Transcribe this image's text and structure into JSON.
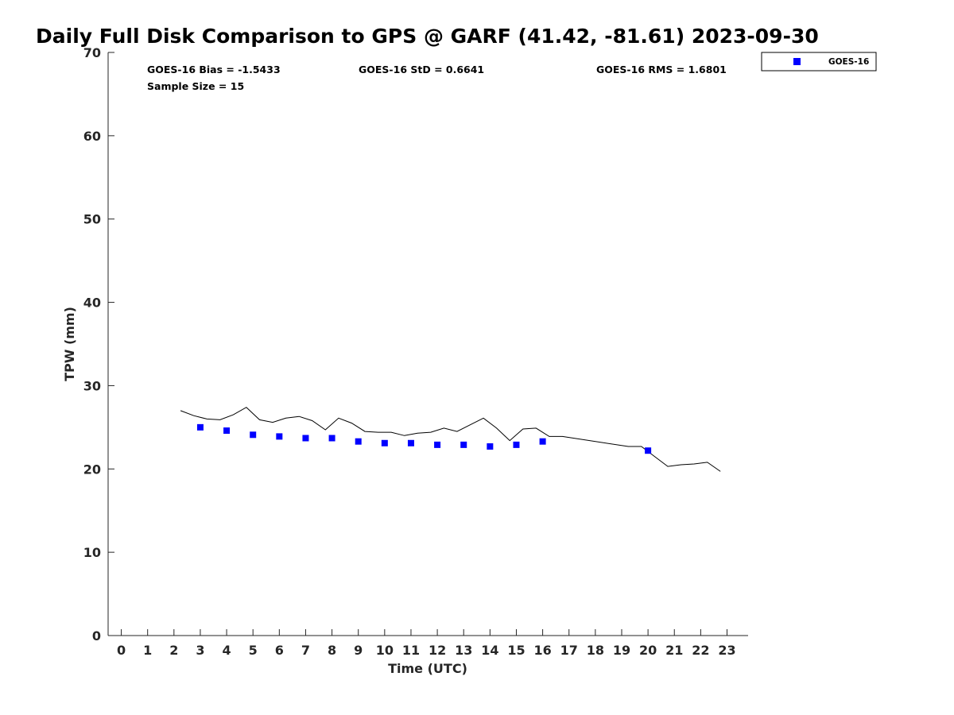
{
  "chart_data": {
    "type": "scatter",
    "title": "Daily Full Disk Comparison to GPS @ GARF (41.42, -81.61) 2023-09-30",
    "xlabel": "Time (UTC)",
    "ylabel": "TPW (mm)",
    "xlim": [
      -0.5,
      23.8
    ],
    "ylim": [
      0,
      70
    ],
    "x_ticks": [
      0,
      1,
      2,
      3,
      4,
      5,
      6,
      7,
      8,
      9,
      10,
      11,
      12,
      13,
      14,
      15,
      16,
      17,
      18,
      19,
      20,
      21,
      22,
      23
    ],
    "y_ticks": [
      0,
      10,
      20,
      30,
      40,
      50,
      60,
      70
    ],
    "grid": false,
    "legend_position": "top-right",
    "stats": {
      "bias": "GOES-16 Bias = -1.5433",
      "std": "GOES-16 StD = 0.6641",
      "rms": "GOES-16 RMS = 1.6801",
      "sample": "Sample Size = 15"
    },
    "series": [
      {
        "name": "GOES-16",
        "kind": "markers",
        "marker": "square",
        "color": "#0000ff",
        "x": [
          3,
          4,
          5,
          6,
          7,
          8,
          9,
          10,
          11,
          12,
          13,
          14,
          15,
          16,
          20
        ],
        "y": [
          25.0,
          24.6,
          24.1,
          23.9,
          23.7,
          23.7,
          23.3,
          23.1,
          23.1,
          22.9,
          22.9,
          22.7,
          22.9,
          23.3,
          22.2
        ]
      },
      {
        "kind": "line",
        "color": "#000000",
        "x": [
          2.25,
          2.75,
          3.25,
          3.75,
          4.25,
          4.75,
          5.25,
          5.75,
          6.25,
          6.75,
          7.25,
          7.75,
          8.25,
          8.75,
          9.25,
          9.75,
          10.25,
          10.75,
          11.25,
          11.75,
          12.25,
          12.75,
          13.25,
          13.75,
          14.25,
          14.75,
          15.25,
          15.75,
          16.25,
          16.75,
          19.25,
          19.75,
          20.25,
          20.75,
          21.25,
          21.75,
          22.25,
          22.75
        ],
        "y": [
          27.0,
          26.4,
          26.0,
          25.9,
          26.5,
          27.4,
          25.9,
          25.6,
          26.1,
          26.3,
          25.8,
          24.7,
          26.1,
          25.5,
          24.5,
          24.4,
          24.4,
          24.0,
          24.3,
          24.4,
          24.9,
          24.5,
          25.3,
          26.1,
          24.9,
          23.4,
          24.8,
          24.9,
          23.9,
          23.9,
          22.7,
          22.7,
          21.5,
          20.3,
          20.5,
          20.6,
          20.8,
          19.7
        ]
      }
    ]
  }
}
